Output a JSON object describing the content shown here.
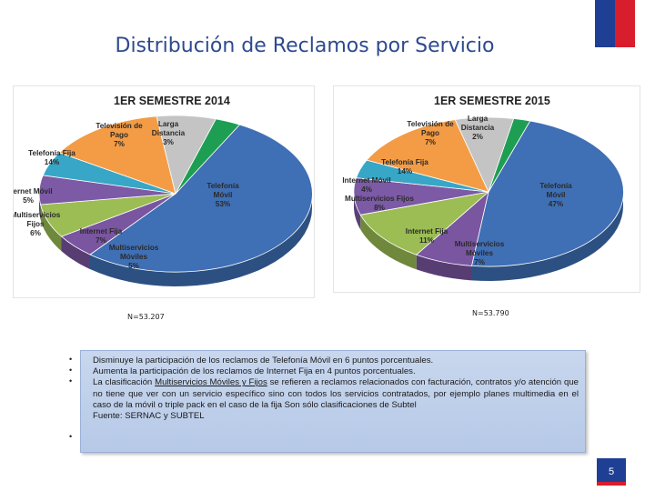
{
  "title": "Distribución de Reclamos por Servicio",
  "colors": {
    "title": "#2e4a8f",
    "accent_blue": "#1f3f95",
    "accent_red": "#d81e2c"
  },
  "chart_data": [
    {
      "type": "pie",
      "title": "1ER SEMESTRE 2014",
      "n_label": "N=53.207",
      "slices": [
        {
          "label": "Telefonía Móvil",
          "value": 53,
          "value_label": "53%",
          "color": "#3f6fb4"
        },
        {
          "label": "Multiservicios Móviles",
          "value": 5,
          "value_label": "5%",
          "color": "#7a55a0"
        },
        {
          "label": "Internet Fija",
          "value": 7,
          "value_label": "7%",
          "color": "#9bbd54"
        },
        {
          "label": "Multiservicios Fijos",
          "value": 6,
          "value_label": "6%",
          "color": "#7c5aa6"
        },
        {
          "label": "Internet Móvil",
          "value": 5,
          "value_label": "5%",
          "color": "#38a6c6"
        },
        {
          "label": "Telefonía Fija",
          "value": 14,
          "value_label": "14%",
          "color": "#f39c45"
        },
        {
          "label": "Televisión de Pago",
          "value": 7,
          "value_label": "7%",
          "color": "#c4c4c4"
        },
        {
          "label": "Larga Distancia",
          "value": 3,
          "value_label": "3%",
          "color": "#1e9e52"
        }
      ]
    },
    {
      "type": "pie",
      "title": "1ER SEMESTRE 2015",
      "n_label": "N=53.790",
      "slices": [
        {
          "label": "Telefonía Móvil",
          "value": 47,
          "value_label": "47%",
          "color": "#3f6fb4"
        },
        {
          "label": "Multiservicios Móviles",
          "value": 7,
          "value_label": "7%",
          "color": "#7a55a0"
        },
        {
          "label": "Internet Fija",
          "value": 11,
          "value_label": "11%",
          "color": "#9bbd54"
        },
        {
          "label": "Multiservicios Fijos",
          "value": 8,
          "value_label": "8%",
          "color": "#7c5aa6"
        },
        {
          "label": "Internet Móvil",
          "value": 4,
          "value_label": "4%",
          "color": "#38a6c6"
        },
        {
          "label": "Telefonía Fija",
          "value": 14,
          "value_label": "14%",
          "color": "#f39c45"
        },
        {
          "label": "Televisión de Pago",
          "value": 7,
          "value_label": "7%",
          "color": "#c4c4c4"
        },
        {
          "label": "Larga Distancia",
          "value": 2,
          "value_label": "2%",
          "color": "#1e9e52"
        }
      ]
    }
  ],
  "notes": [
    "Disminuye la participación de los reclamos de Telefonía Móvil en 6 puntos porcentuales.",
    "Aumenta la participación de los reclamos de Internet Fija en 4 puntos porcentuales.",
    {
      "prefix": "La clasificación ",
      "underlined": "Multiservicios Móviles y Fijos",
      "suffix": " se refieren a reclamos relacionados con facturación, contratos y/o atención que no tiene que ver con un servicio específico sino con todos los servicios contratados, por ejemplo planes multimedia en el caso de la móvil o triple pack en el caso de la fija Son sólo clasificaciones de Subtel"
    },
    "Fuente: SERNAC y SUBTEL"
  ],
  "bullet_char": "•",
  "page_number": "5"
}
